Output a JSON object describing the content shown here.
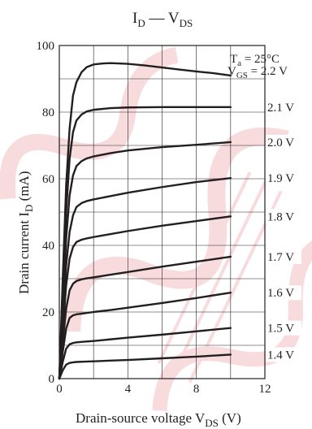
{
  "chart_data": {
    "type": "line",
    "title_main": "I",
    "title_sub1": "D",
    "title_sep": " — V",
    "title_sub2": "DS",
    "xlabel_main": "Drain-source voltage  V",
    "xlabel_sub": "DS",
    "xlabel_unit": "  (V)",
    "ylabel_main": "Drain current  I",
    "ylabel_sub": "D",
    "ylabel_unit": "  (mA)",
    "condition_temp_main": "T",
    "condition_temp_sub": "a",
    "condition_temp_value": " = 25°C",
    "condition_vgs_main": "V",
    "condition_vgs_sub": "GS",
    "xlim": [
      0,
      12
    ],
    "ylim": [
      0,
      100
    ],
    "x_ticks": [
      0,
      4,
      8,
      12
    ],
    "y_ticks": [
      0,
      20,
      40,
      60,
      80,
      100
    ],
    "x_grid": [
      0,
      2,
      4,
      6,
      8,
      10,
      12
    ],
    "y_grid": [
      0,
      10,
      20,
      30,
      40,
      50,
      60,
      70,
      80,
      90,
      100
    ],
    "grid": true,
    "series": [
      {
        "label": " = 2.2 V",
        "points": [
          [
            0,
            0
          ],
          [
            0.2,
            30
          ],
          [
            0.4,
            58
          ],
          [
            0.6,
            75
          ],
          [
            0.8,
            85
          ],
          [
            1.0,
            89
          ],
          [
            1.3,
            92
          ],
          [
            1.6,
            93.5
          ],
          [
            2.0,
            94.3
          ],
          [
            2.5,
            94.6
          ],
          [
            3.0,
            94.7
          ],
          [
            4.0,
            94.5
          ],
          [
            5.0,
            94.0
          ],
          [
            6.0,
            93.4
          ],
          [
            7.0,
            92.8
          ],
          [
            8.0,
            92.2
          ],
          [
            9.0,
            91.7
          ],
          [
            10.0,
            91.0
          ]
        ]
      },
      {
        "label": "2.1 V",
        "points": [
          [
            0,
            0
          ],
          [
            0.2,
            25
          ],
          [
            0.4,
            50
          ],
          [
            0.6,
            66
          ],
          [
            0.8,
            74
          ],
          [
            1.0,
            77.5
          ],
          [
            1.3,
            79.3
          ],
          [
            1.6,
            80.2
          ],
          [
            2.0,
            80.7
          ],
          [
            3.0,
            81.2
          ],
          [
            4.0,
            81.4
          ],
          [
            6.0,
            81.5
          ],
          [
            8.0,
            81.5
          ],
          [
            10.0,
            81.5
          ]
        ]
      },
      {
        "label": "2.0 V",
        "points": [
          [
            0,
            0
          ],
          [
            0.2,
            21
          ],
          [
            0.4,
            42
          ],
          [
            0.6,
            55
          ],
          [
            0.8,
            61
          ],
          [
            1.0,
            63.8
          ],
          [
            1.3,
            65.3
          ],
          [
            1.6,
            66.1
          ],
          [
            2.0,
            66.7
          ],
          [
            3.0,
            67.7
          ],
          [
            4.0,
            68.5
          ],
          [
            6.0,
            69.5
          ],
          [
            8.0,
            70.2
          ],
          [
            10.0,
            71.0
          ]
        ]
      },
      {
        "label": "1.9 V",
        "points": [
          [
            0,
            0
          ],
          [
            0.2,
            17
          ],
          [
            0.4,
            34
          ],
          [
            0.6,
            44
          ],
          [
            0.8,
            49
          ],
          [
            1.0,
            51.5
          ],
          [
            1.3,
            52.7
          ],
          [
            1.6,
            53.3
          ],
          [
            2.0,
            53.8
          ],
          [
            3.0,
            54.8
          ],
          [
            4.0,
            55.8
          ],
          [
            6.0,
            57.5
          ],
          [
            8.0,
            59.0
          ],
          [
            10.0,
            60.2
          ]
        ]
      },
      {
        "label": "1.8 V",
        "points": [
          [
            0,
            0
          ],
          [
            0.2,
            14
          ],
          [
            0.4,
            28
          ],
          [
            0.6,
            36
          ],
          [
            0.8,
            39.5
          ],
          [
            1.0,
            41.0
          ],
          [
            1.3,
            41.7
          ],
          [
            1.6,
            42.1
          ],
          [
            2.0,
            42.5
          ],
          [
            3.0,
            43.4
          ],
          [
            4.0,
            44.3
          ],
          [
            6.0,
            45.9
          ],
          [
            8.0,
            47.3
          ],
          [
            10.0,
            48.7
          ]
        ]
      },
      {
        "label": "1.7 V",
        "points": [
          [
            0,
            0
          ],
          [
            0.2,
            11
          ],
          [
            0.4,
            21
          ],
          [
            0.6,
            26.5
          ],
          [
            0.8,
            28.5
          ],
          [
            1.0,
            29.3
          ],
          [
            1.3,
            29.8
          ],
          [
            1.6,
            30.1
          ],
          [
            2.0,
            30.4
          ],
          [
            3.0,
            31.2
          ],
          [
            4.0,
            32.0
          ],
          [
            6.0,
            33.6
          ],
          [
            8.0,
            35.1
          ],
          [
            10.0,
            36.6
          ]
        ]
      },
      {
        "label": "1.6 V",
        "points": [
          [
            0,
            0
          ],
          [
            0.2,
            8
          ],
          [
            0.4,
            15
          ],
          [
            0.6,
            18.2
          ],
          [
            0.8,
            19.0
          ],
          [
            1.0,
            19.3
          ],
          [
            1.3,
            19.5
          ],
          [
            1.6,
            19.7
          ],
          [
            2.0,
            20.0
          ],
          [
            3.0,
            20.6
          ],
          [
            4.0,
            21.3
          ],
          [
            6.0,
            22.7
          ],
          [
            8.0,
            24.2
          ],
          [
            10.0,
            25.8
          ]
        ]
      },
      {
        "label": "1.5 V",
        "points": [
          [
            0,
            0
          ],
          [
            0.2,
            5
          ],
          [
            0.4,
            9
          ],
          [
            0.6,
            10.3
          ],
          [
            0.8,
            10.7
          ],
          [
            1.0,
            10.9
          ],
          [
            1.5,
            11.1
          ],
          [
            2.0,
            11.3
          ],
          [
            3.0,
            11.8
          ],
          [
            4.0,
            12.3
          ],
          [
            6.0,
            13.2
          ],
          [
            8.0,
            14.2
          ],
          [
            10.0,
            15.2
          ]
        ]
      },
      {
        "label": "1.4 V",
        "points": [
          [
            0,
            0
          ],
          [
            0.2,
            2.5
          ],
          [
            0.4,
            4.2
          ],
          [
            0.6,
            4.7
          ],
          [
            0.8,
            4.9
          ],
          [
            1.0,
            5.0
          ],
          [
            1.5,
            5.1
          ],
          [
            2.0,
            5.2
          ],
          [
            3.0,
            5.4
          ],
          [
            4.0,
            5.6
          ],
          [
            6.0,
            6.1
          ],
          [
            8.0,
            6.6
          ],
          [
            10.0,
            7.2
          ]
        ]
      }
    ]
  }
}
